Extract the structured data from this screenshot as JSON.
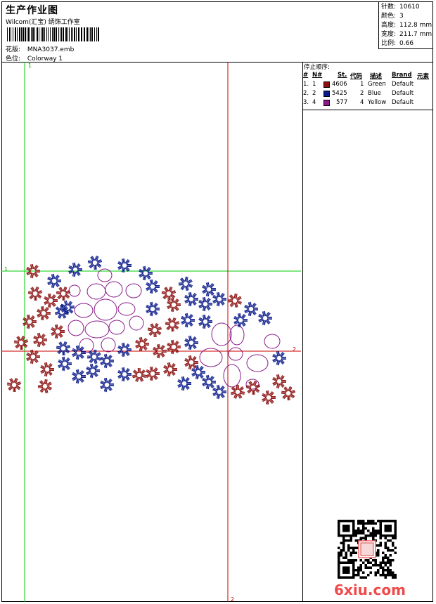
{
  "header": {
    "title": "生产作业图",
    "studio": "Wilcom(汇宝) 绣饰工作室",
    "file_label": "花版:",
    "file_value": "MNA3037.emb",
    "colorway_label": "色位:",
    "colorway_value": "Colorway 1"
  },
  "stats": {
    "stitches_label": "针数:",
    "stitches_value": "10610",
    "colors_label": "颜色:",
    "colors_value": "3",
    "height_label": "高度:",
    "height_value": "112.8 mm",
    "width_label": "宽度:",
    "width_value": "211.7 mm",
    "scale_label": "比例:",
    "scale_value": "0.66"
  },
  "stop_sequence": {
    "title": "停止顺序:",
    "columns": [
      "#",
      "N#",
      "St.",
      "代码",
      "描述",
      "Brand",
      "元素"
    ],
    "rows": [
      {
        "num": "1.",
        "n": "1",
        "color": "#8b1010",
        "stitches": "4606",
        "code": "1",
        "desc": "Green",
        "brand": "Default"
      },
      {
        "num": "2.",
        "n": "2",
        "color": "#0a1a8a",
        "stitches": "5425",
        "code": "2",
        "desc": "Blue",
        "brand": "Default"
      },
      {
        "num": "3.",
        "n": "4",
        "color": "#8a1a8a",
        "stitches": "577",
        "code": "4",
        "desc": "Yellow",
        "brand": "Default"
      }
    ]
  },
  "guides": {
    "v1": "1",
    "h1": "1",
    "h2": "2",
    "v2": "2"
  },
  "colors": {
    "red_thread": "#8b1010",
    "blue_thread": "#0a1a8a",
    "purple_thread": "#8a1a8a",
    "guide_green": "#00cc00",
    "guide_red": "#cc0000",
    "watermark": "#ef4a4a"
  },
  "watermark": "6xiu.com"
}
